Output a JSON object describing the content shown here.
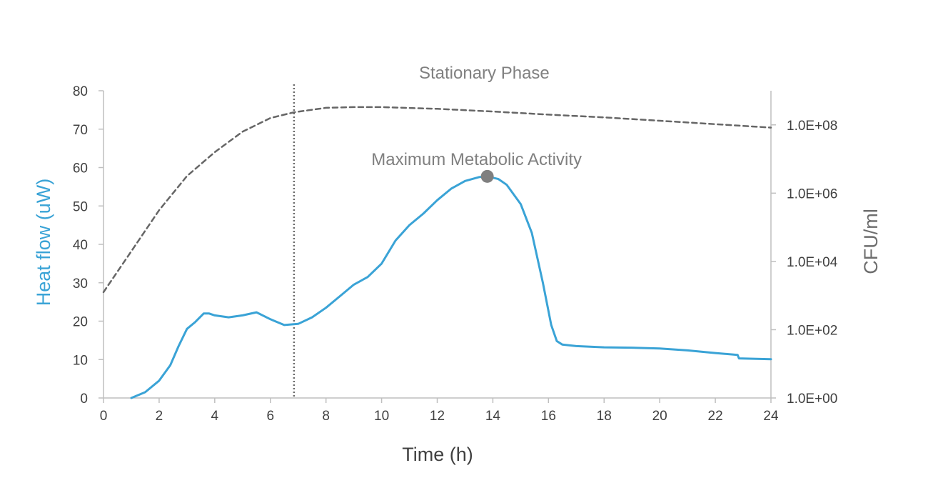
{
  "chart_data": {
    "type": "line",
    "xlabel": "Time (h)",
    "ylabel": "Heat flow (uW)",
    "y2label": "CFU/ml",
    "xlim": [
      0,
      24
    ],
    "ylim": [
      0,
      80
    ],
    "y2lim_log10": [
      0,
      9
    ],
    "x_ticks": [
      "0",
      "2",
      "4",
      "6",
      "8",
      "10",
      "12",
      "14",
      "16",
      "18",
      "20",
      "22",
      "24"
    ],
    "y_ticks": [
      "0",
      "10",
      "20",
      "30",
      "40",
      "50",
      "60",
      "70",
      "80"
    ],
    "y2_ticks": [
      "1.0E+00",
      "1.0E+02",
      "1.0E+04",
      "1.0E+06",
      "1.0E+08"
    ],
    "grid": false,
    "colors": {
      "heat_flow": "#3aa3d6",
      "cfu": "#666666",
      "marker": "#7f7f7f",
      "vline": "#6d6d6d",
      "axis": "#bfbfbf",
      "ylabel": "#3aa3d6",
      "y2label": "#6d6d6d",
      "text": "#404040"
    },
    "series": [
      {
        "axis": "left",
        "style": "solid",
        "x": [
          1.0,
          1.5,
          2.0,
          2.4,
          2.7,
          3.0,
          3.3,
          3.6,
          3.8,
          4.0,
          4.5,
          5.0,
          5.5,
          6.0,
          6.5,
          7.0,
          7.5,
          8.0,
          8.5,
          9.0,
          9.5,
          10.0,
          10.5,
          11.0,
          11.5,
          12.0,
          12.5,
          13.0,
          13.5,
          13.8,
          14.2,
          14.5,
          15.0,
          15.4,
          15.8,
          16.1,
          16.3,
          16.5,
          17.0,
          18.0,
          19.0,
          20.0,
          21.0,
          22.0,
          22.8,
          22.85,
          24.0
        ],
        "values": [
          0,
          1.5,
          4.5,
          8.5,
          13.5,
          18,
          19.8,
          22,
          22,
          21.5,
          21,
          21.5,
          22.3,
          20.5,
          19,
          19.3,
          21,
          23.5,
          26.5,
          29.5,
          31.5,
          35,
          41,
          45,
          48,
          51.5,
          54.5,
          56.5,
          57.5,
          57.7,
          57,
          55.5,
          50.5,
          43,
          30,
          19,
          14.8,
          13.9,
          13.5,
          13.2,
          13.1,
          12.9,
          12.4,
          11.7,
          11.2,
          10.3,
          10.1
        ]
      },
      {
        "axis": "right",
        "style": "dashed",
        "x": [
          0,
          1,
          2,
          3,
          4,
          5,
          6,
          6.85,
          8,
          9,
          10,
          12,
          14,
          16,
          18,
          20,
          22,
          24
        ],
        "log10_values": [
          3.1,
          4.3,
          5.5,
          6.5,
          7.2,
          7.8,
          8.2,
          8.37,
          8.5,
          8.52,
          8.52,
          8.47,
          8.39,
          8.3,
          8.22,
          8.12,
          8.02,
          7.92
        ]
      }
    ],
    "vline_x": 6.85,
    "annotations": [
      {
        "text": "Stationary Phase",
        "x": 15.0,
        "y": 85
      },
      {
        "text": "Maximum Metabolic Activity",
        "x": 13.8,
        "y": 57.7,
        "marker": true
      }
    ]
  }
}
